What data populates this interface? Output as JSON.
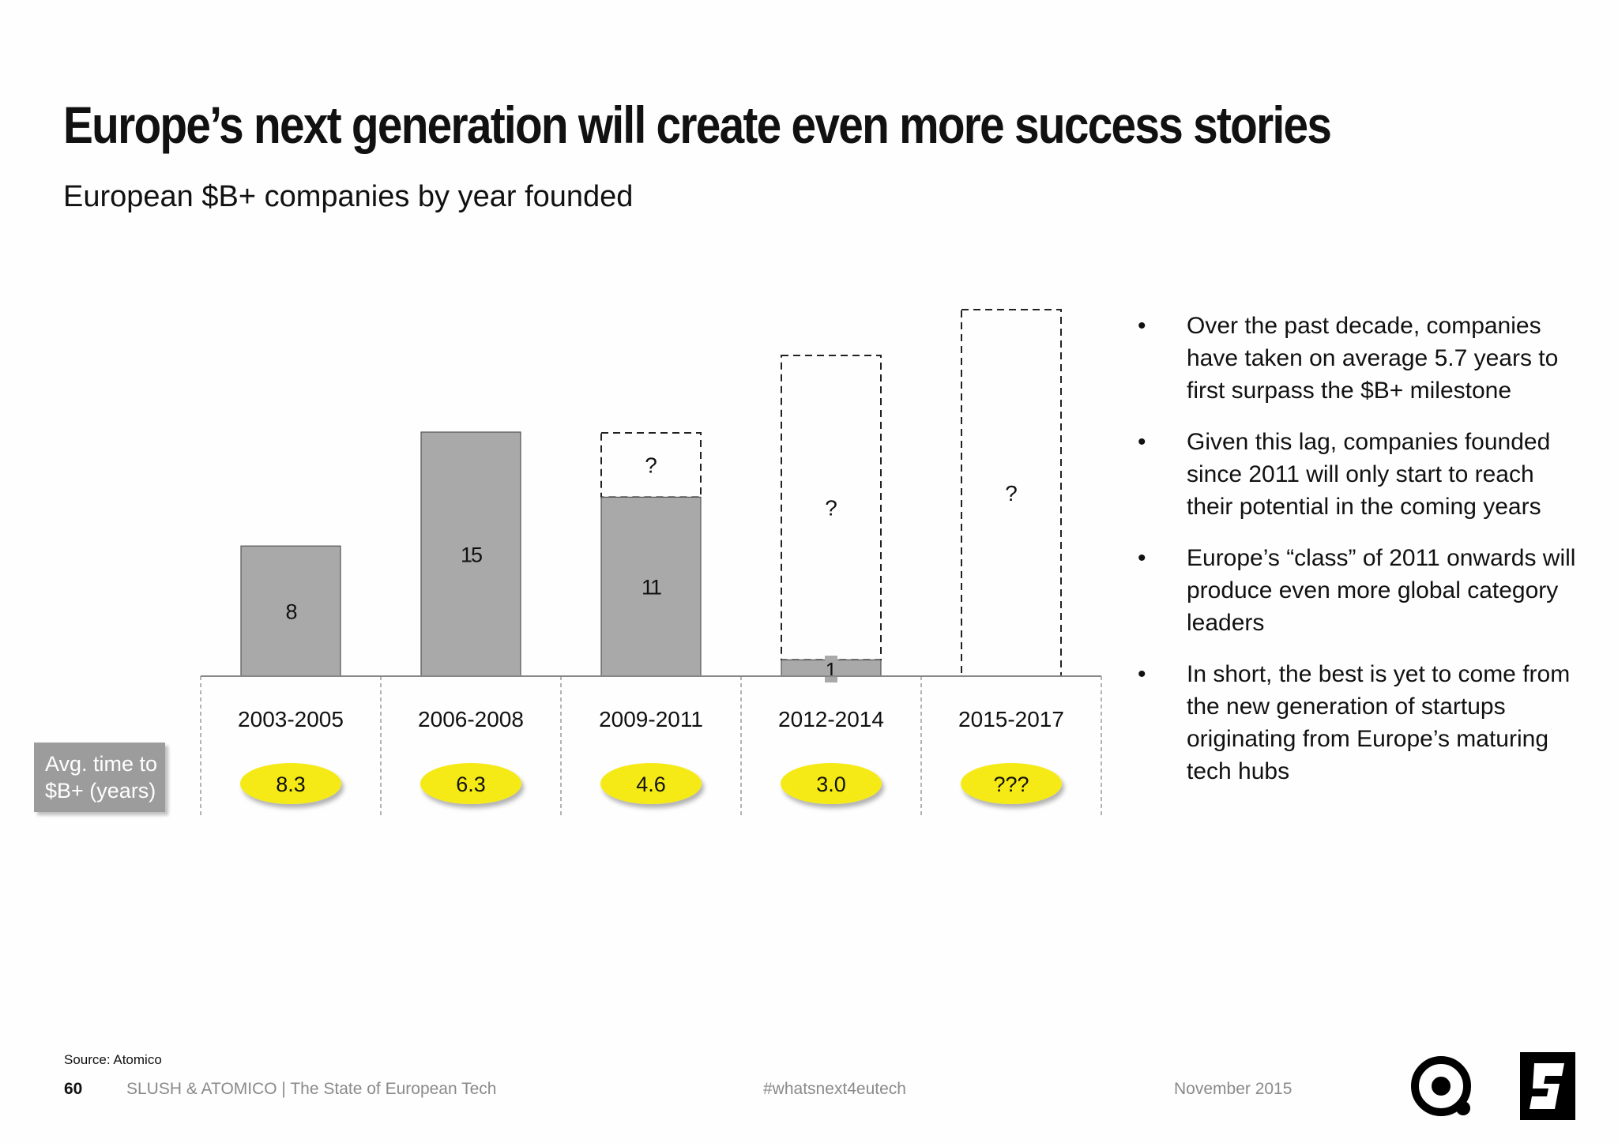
{
  "header": {
    "title": "Europe’s next generation will create even more success stories",
    "subtitle": "European $B+ companies by year founded"
  },
  "chart_data": {
    "type": "bar",
    "categories": [
      "2003-2005",
      "2006-2008",
      "2009-2011",
      "2012-2014",
      "2015-2017"
    ],
    "values": [
      8,
      15,
      11,
      1,
      null
    ],
    "value_labels": [
      "8",
      "15",
      "11",
      "1",
      ""
    ],
    "projected_labels": [
      "",
      "",
      "?",
      "?",
      "?"
    ],
    "avg_time_label": "Avg. time to $B+ (years)",
    "avg_time": [
      "8.3",
      "6.3",
      "4.6",
      "3.0",
      "???"
    ],
    "colors": {
      "actual": "#a9a9aa",
      "highlight": "#f5ea14"
    }
  },
  "bullets": [
    "Over the past decade, companies have taken on average 5.7 years to first surpass the $B+ milestone",
    "Given this lag, companies founded since 2011 will only start to reach their potential in the coming years",
    "Europe’s “class” of 2011 onwards will produce even more global category leaders",
    "In short, the best is yet to come from the new generation of startups originating from Europe’s maturing tech hubs"
  ],
  "footer": {
    "source": "Source: Atomico",
    "page_number": "60",
    "brand": "SLUSH & ATOMICO  |  The State of European Tech",
    "hashtag": "#whatsnext4eutech",
    "date": "November 2015"
  },
  "icons": {
    "atomico_logo": "atomico-logo-icon",
    "slush_logo": "slush-logo-icon"
  }
}
